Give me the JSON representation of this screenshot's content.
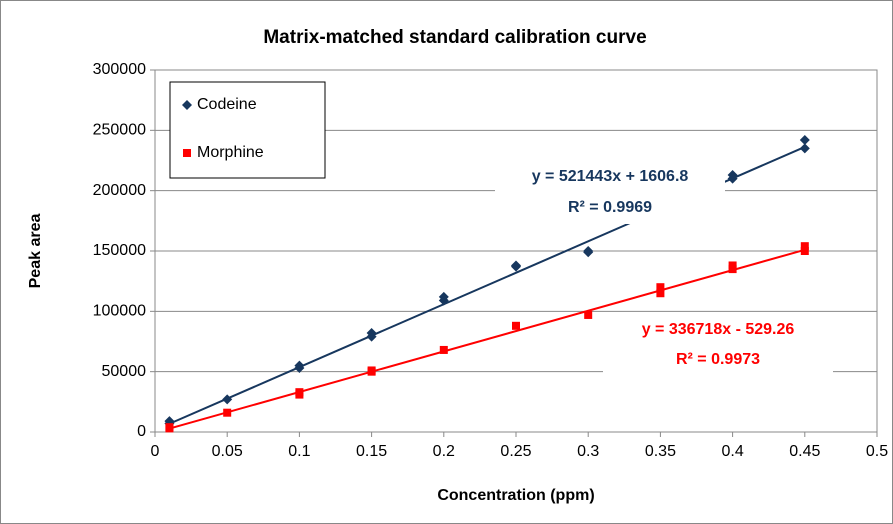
{
  "chart_data": {
    "type": "scatter",
    "title": "Matrix-matched standard calibration curve",
    "x_label": "Concentration (ppm)",
    "y_label": "Peak area",
    "xlim": [
      0,
      0.5
    ],
    "xticks": [
      0,
      0.05,
      0.1,
      0.15,
      0.2,
      0.25,
      0.3,
      0.35,
      0.4,
      0.45,
      0.5
    ],
    "ylim": [
      0,
      300000
    ],
    "yticks": [
      0,
      50000,
      100000,
      150000,
      200000,
      250000,
      300000
    ],
    "grid": true,
    "legend": "upper left",
    "series": [
      {
        "name": "Codeine",
        "color": "#17375e",
        "marker": "diamond",
        "x": [
          0.01,
          0.01,
          0.05,
          0.1,
          0.1,
          0.15,
          0.15,
          0.2,
          0.2,
          0.25,
          0.25,
          0.3,
          0.3,
          0.4,
          0.4,
          0.45,
          0.45
        ],
        "values": [
          7000,
          9000,
          27000,
          53000,
          55000,
          79000,
          82000,
          109000,
          112000,
          137000,
          138000,
          149000,
          150000,
          210000,
          213000,
          235000,
          242000
        ],
        "trendline": {
          "slope": 521443,
          "intercept": 1606.8,
          "equation": "y = 521443x + 1606.8",
          "r2_label": "R² = 0.9969"
        }
      },
      {
        "name": "Morphine",
        "color": "#ff0000",
        "marker": "square",
        "x": [
          0.01,
          0.01,
          0.05,
          0.1,
          0.1,
          0.15,
          0.15,
          0.2,
          0.25,
          0.3,
          0.35,
          0.35,
          0.4,
          0.4,
          0.45,
          0.45
        ],
        "values": [
          3000,
          4000,
          16000,
          31000,
          33000,
          50000,
          51000,
          68000,
          88000,
          97000,
          115000,
          120000,
          135000,
          138000,
          150000,
          154000
        ],
        "trendline": {
          "slope": 336718,
          "intercept": -529.26,
          "equation": "y = 336718x - 529.26",
          "r2_label": "R² = 0.9973"
        }
      }
    ]
  }
}
